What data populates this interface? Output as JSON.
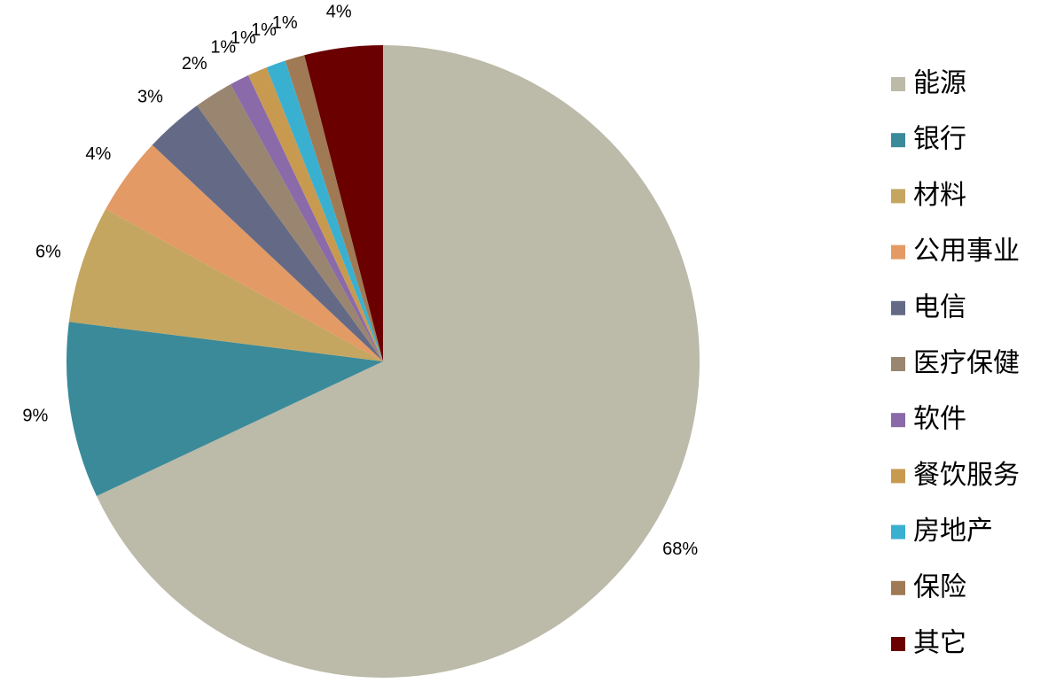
{
  "chart_data": {
    "type": "pie",
    "categories": [
      "能源",
      "银行",
      "材料",
      "公用事业",
      "电信",
      "医疗保健",
      "软件",
      "餐饮服务",
      "房地产",
      "保险",
      "其它"
    ],
    "values": [
      68,
      9,
      6,
      4,
      3,
      2,
      1,
      1,
      1,
      1,
      4
    ],
    "value_labels": [
      "68%",
      "9%",
      "6%",
      "4%",
      "3%",
      "2%",
      "1%",
      "1%",
      "1%",
      "1%",
      "4%"
    ],
    "colors": [
      "#bcbaa8",
      "#3a8a9a",
      "#c4a660",
      "#e39a65",
      "#646a86",
      "#9a8570",
      "#8a6aa8",
      "#c89a50",
      "#3ab0d0",
      "#a07a55",
      "#6a0000"
    ]
  }
}
